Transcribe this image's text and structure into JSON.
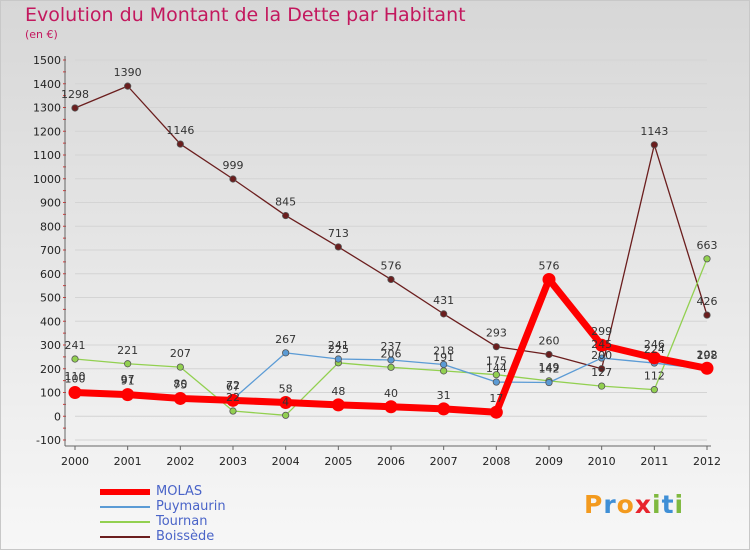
{
  "title": "Evolution du Montant de la Dette par Habitant",
  "unit": "(en €)",
  "logo": {
    "letters": [
      "P",
      "r",
      "o",
      "x",
      "i",
      "t",
      "i"
    ],
    "colors": [
      "#f39a1e",
      "#3f8fd6",
      "#f39a1e",
      "#e8242d",
      "#7fb93f",
      "#3f8fd6",
      "#7fb93f"
    ]
  },
  "chart_data": {
    "type": "line",
    "categories": [
      "2000",
      "2001",
      "2002",
      "2003",
      "2004",
      "2005",
      "2006",
      "2007",
      "2008",
      "2009",
      "2010",
      "2011",
      "2012"
    ],
    "ylim": [
      -100,
      1500
    ],
    "yticks": [
      "-100",
      "0",
      "100",
      "200",
      "300",
      "400",
      "500",
      "600",
      "700",
      "800",
      "900",
      "1000",
      "1100",
      "1200",
      "1300",
      "1400",
      "1500"
    ],
    "grid": true,
    "legend_position": "bottom-left",
    "series": [
      {
        "name": "MOLAS",
        "color": "#ff0000",
        "values": [
          100,
          91,
          75,
          67,
          58,
          48,
          40,
          31,
          17,
          576,
          299,
          246,
          202
        ],
        "labels": [
          "100",
          "91",
          "75",
          "67",
          "58",
          "48",
          "40",
          "31",
          "17",
          "576",
          "299",
          "246",
          "202"
        ]
      },
      {
        "name": "Puymaurin",
        "color": "#5b9bd5",
        "values": [
          110,
          97,
          80,
          72,
          267,
          241,
          237,
          218,
          144,
          142,
          245,
          224,
          198
        ],
        "labels": [
          "110",
          "97",
          "80",
          "72",
          "267",
          "241",
          "237",
          "218",
          "144",
          "142",
          "245",
          "224",
          "198"
        ]
      },
      {
        "name": "Tournan",
        "color": "#92d050",
        "values": [
          241,
          221,
          207,
          22,
          4,
          225,
          206,
          191,
          175,
          149,
          127,
          112,
          663
        ],
        "labels": [
          "241",
          "221",
          "207",
          "22",
          "4",
          "225",
          "206",
          "191",
          "175",
          "149",
          "127",
          "112",
          "663"
        ]
      },
      {
        "name": "Boissède",
        "color": "#6b1e1e",
        "values": [
          1298,
          1390,
          1146,
          999,
          845,
          713,
          576,
          431,
          293,
          260,
          200,
          1143,
          426
        ],
        "labels": [
          "1298",
          "1390",
          "1146",
          "999",
          "845",
          "713",
          "576",
          "431",
          "293",
          "260",
          "200",
          "1143",
          "426"
        ]
      }
    ]
  }
}
